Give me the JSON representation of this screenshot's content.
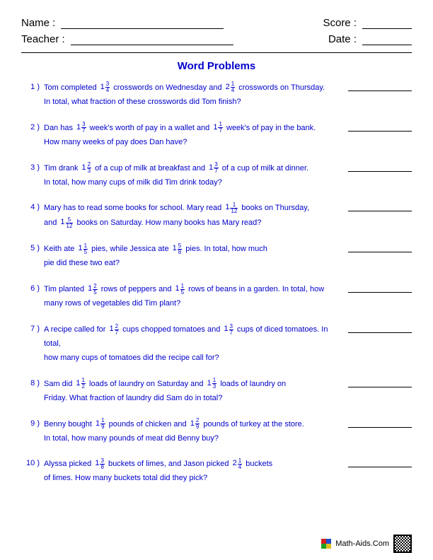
{
  "header": {
    "name_label": "Name :",
    "teacher_label": "Teacher :",
    "score_label": "Score :",
    "date_label": "Date :",
    "name_line_width": 230,
    "teacher_line_width": 230,
    "score_line_width": 70,
    "date_line_width": 70
  },
  "title": "Word Problems",
  "colors": {
    "primary": "#0000cc",
    "text": "#000000",
    "background": "#ffffff"
  },
  "typography": {
    "header_fontsize": 15,
    "title_fontsize": 15,
    "problem_fontsize": 11,
    "fraction_fontsize": 8
  },
  "problems": [
    {
      "num": "1 )",
      "segments": [
        {
          "t": "Tom completed "
        },
        {
          "mixed": {
            "w": "1",
            "n": "3",
            "d": "4"
          }
        },
        {
          "t": " crosswords on Wednesday and "
        },
        {
          "mixed": {
            "w": "2",
            "n": "1",
            "d": "4"
          }
        },
        {
          "t": " crosswords on Thursday."
        },
        {
          "br": true
        },
        {
          "t": "In total, what fraction of these crosswords did Tom finish?"
        }
      ]
    },
    {
      "num": "2 )",
      "segments": [
        {
          "t": "Dan has "
        },
        {
          "mixed": {
            "w": "1",
            "n": "3",
            "d": "7"
          }
        },
        {
          "t": " week's worth of pay in a wallet and "
        },
        {
          "mixed": {
            "w": "1",
            "n": "1",
            "d": "7"
          }
        },
        {
          "t": " week's of pay in the bank."
        },
        {
          "br": true
        },
        {
          "t": "How many weeks of pay does Dan have?"
        }
      ]
    },
    {
      "num": "3 )",
      "segments": [
        {
          "t": "Tim drank "
        },
        {
          "mixed": {
            "w": "1",
            "n": "2",
            "d": "3"
          }
        },
        {
          "t": " of a cup of milk at breakfast and "
        },
        {
          "mixed": {
            "w": "1",
            "n": "3",
            "d": "7"
          }
        },
        {
          "t": " of a cup of milk at dinner."
        },
        {
          "br": true
        },
        {
          "t": "In total, how many cups of milk did Tim drink today?"
        }
      ]
    },
    {
      "num": "4 )",
      "segments": [
        {
          "t": "Mary has to read some books for school. Mary read "
        },
        {
          "mixed": {
            "w": "1",
            "n": "1",
            "d": "12"
          }
        },
        {
          "t": " books on Thursday,"
        },
        {
          "br": true
        },
        {
          "t": "and "
        },
        {
          "mixed": {
            "w": "1",
            "n": "5",
            "d": "12"
          }
        },
        {
          "t": " books on Saturday. How many books has Mary read?"
        }
      ]
    },
    {
      "num": "5 )",
      "segments": [
        {
          "t": "Keith ate "
        },
        {
          "mixed": {
            "w": "1",
            "n": "1",
            "d": "5"
          }
        },
        {
          "t": " pies, while Jessica ate "
        },
        {
          "mixed": {
            "w": "1",
            "n": "5",
            "d": "8"
          }
        },
        {
          "t": " pies. In total, how much"
        },
        {
          "br": true
        },
        {
          "t": "pie did these two eat?"
        }
      ]
    },
    {
      "num": "6 )",
      "segments": [
        {
          "t": "Tim planted "
        },
        {
          "mixed": {
            "w": "1",
            "n": "2",
            "d": "5"
          }
        },
        {
          "t": " rows of peppers and "
        },
        {
          "mixed": {
            "w": "1",
            "n": "1",
            "d": "5"
          }
        },
        {
          "t": " rows of beans in a garden. In total, how"
        },
        {
          "br": true
        },
        {
          "t": "many rows of vegetables did Tim plant?"
        }
      ]
    },
    {
      "num": "7 )",
      "segments": [
        {
          "t": "A recipe called for "
        },
        {
          "mixed": {
            "w": "1",
            "n": "2",
            "d": "7"
          }
        },
        {
          "t": " cups chopped tomatoes and "
        },
        {
          "mixed": {
            "w": "1",
            "n": "3",
            "d": "7"
          }
        },
        {
          "t": " cups of diced tomatoes. In total,"
        },
        {
          "br": true
        },
        {
          "t": "how many cups of tomatoes did the recipe call for?"
        }
      ]
    },
    {
      "num": "8 )",
      "segments": [
        {
          "t": "Sam did "
        },
        {
          "mixed": {
            "w": "1",
            "n": "1",
            "d": "2"
          }
        },
        {
          "t": " loads of laundry on Saturday and "
        },
        {
          "mixed": {
            "w": "1",
            "n": "1",
            "d": "3"
          }
        },
        {
          "t": " loads of laundry on"
        },
        {
          "br": true
        },
        {
          "t": "Friday. What fraction of laundry did Sam do in total?"
        }
      ]
    },
    {
      "num": "9 )",
      "segments": [
        {
          "t": "Benny bought "
        },
        {
          "mixed": {
            "w": "1",
            "n": "1",
            "d": "9"
          }
        },
        {
          "t": " pounds of chicken and "
        },
        {
          "mixed": {
            "w": "1",
            "n": "2",
            "d": "9"
          }
        },
        {
          "t": " pounds of turkey at the store."
        },
        {
          "br": true
        },
        {
          "t": "In total, how many pounds of meat did Benny buy?"
        }
      ]
    },
    {
      "num": "10 )",
      "segments": [
        {
          "t": "Alyssa picked "
        },
        {
          "mixed": {
            "w": "1",
            "n": "3",
            "d": "8"
          }
        },
        {
          "t": " buckets of limes, and Jason picked "
        },
        {
          "mixed": {
            "w": "2",
            "n": "1",
            "d": "4"
          }
        },
        {
          "t": " buckets"
        },
        {
          "br": true
        },
        {
          "t": "of limes. How many buckets total did they pick?"
        }
      ]
    }
  ],
  "footer": {
    "site": "Math-Aids.Com",
    "icon_colors": [
      "#d02020",
      "#2050d0",
      "#20a020",
      "#e0c020"
    ]
  }
}
